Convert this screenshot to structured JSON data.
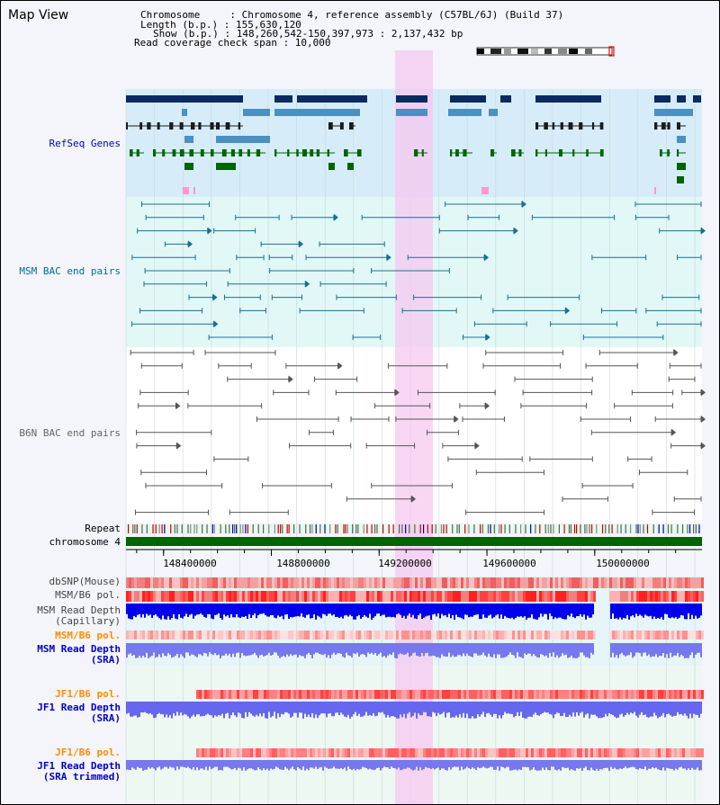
{
  "header": {
    "title": "Map View",
    "lines": [
      "Chromosome     : Chromosome 4, reference assembly (C57BL/6J) (Build 37)",
      "Length (b.p.) : 155,630,120",
      "Show (b.p.) : 148,260,542-150,397,973 : 2,137,432 bp",
      "Read coverage check span : 10,000"
    ]
  },
  "axis": {
    "start": 148260542,
    "end": 150397973,
    "ticks": [
      "148400000",
      "148800000",
      "149200000",
      "149600000",
      "150000000"
    ],
    "tick_values": [
      148400000,
      148800000,
      149200000,
      149600000,
      150000000
    ]
  },
  "tracks": {
    "refseq": "RefSeq Genes",
    "msm_bac": "MSM BAC end pairs",
    "b6n_bac": "B6N BAC end pairs",
    "repeat": "Repeat",
    "chromosome": "chromosome 4",
    "dbsnp": "dbSNP(Mouse)",
    "msm_pol": "MSM/B6 pol.",
    "msm_depth_cap": [
      "MSM Read Depth",
      "(Capillary)"
    ],
    "msm_pol2": "MSM/B6 pol.",
    "msm_depth_sra": [
      "MSM Read Depth",
      "(SRA)"
    ],
    "jf1_pol": "JF1/B6 pol.",
    "jf1_depth_sra": [
      "JF1 Read Depth",
      "(SRA)"
    ],
    "jf1_pol2": "JF1/B6 pol.",
    "jf1_depth_trim": [
      "JF1 Read Depth",
      "(SRA trimmed)"
    ]
  },
  "colors": {
    "refseq_label": "#0000cc",
    "msm_label": "#006f8c",
    "b6n_label": "#666666",
    "pol_label": "#ff8c00",
    "depth_label": "#0000cc",
    "highlight": "#f5c8f0"
  }
}
